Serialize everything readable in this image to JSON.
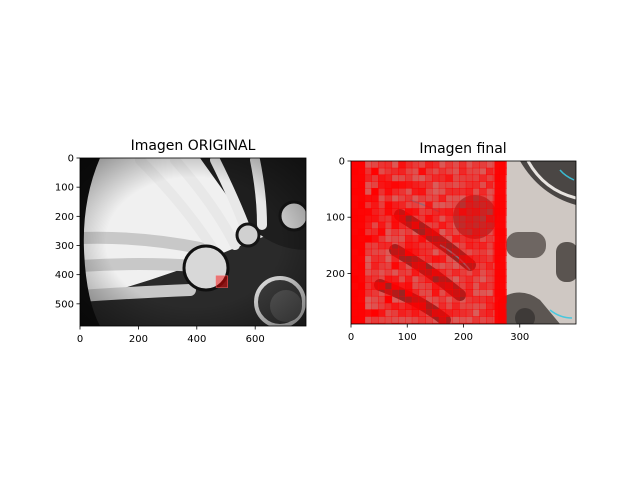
{
  "chart_data": [
    {
      "type": "image",
      "title": "Imagen ORIGINAL",
      "xlim": [
        0,
        774
      ],
      "ylim": [
        576,
        0
      ],
      "xticks": [
        0,
        200,
        400,
        600
      ],
      "yticks": [
        0,
        100,
        200,
        300,
        400,
        500
      ],
      "overlays": [
        {
          "shape": "square",
          "color": "#ff0000",
          "x": [
            466,
            506
          ],
          "y": [
            404,
            444
          ]
        }
      ]
    },
    {
      "type": "image",
      "title": "Imagen final",
      "xlim": [
        0,
        400
      ],
      "ylim": [
        290,
        0
      ],
      "xticks": [
        0,
        100,
        200,
        300
      ],
      "yticks": [
        0,
        100,
        200
      ],
      "overlays": [
        {
          "shape": "block-mosaic",
          "color": "#ff0000",
          "x": [
            0,
            275
          ],
          "y": [
            0,
            290
          ]
        }
      ]
    }
  ]
}
